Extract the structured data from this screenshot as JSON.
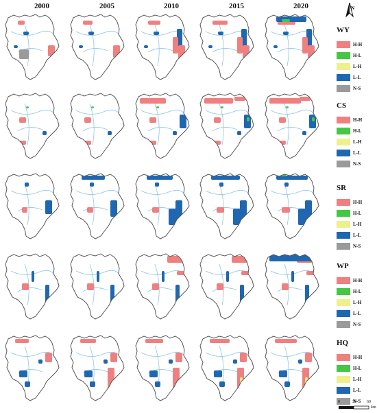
{
  "years": [
    "2000",
    "2005",
    "2010",
    "2015",
    "2020"
  ],
  "indicators": [
    "WY",
    "CS",
    "SR",
    "WP",
    "HQ"
  ],
  "legend_classes": [
    {
      "label": "H-H",
      "color": "#f08080"
    },
    {
      "label": "H-L",
      "color": "#44c844"
    },
    {
      "label": "L-H",
      "color": "#eef08a"
    },
    {
      "label": "L-L",
      "color": "#1f67b1"
    },
    {
      "label": "N-S",
      "color": "#9a9a9a"
    }
  ],
  "north_label": "N",
  "scale_bar": {
    "ticks": [
      "0",
      "30",
      "60"
    ],
    "unit": "km"
  }
}
